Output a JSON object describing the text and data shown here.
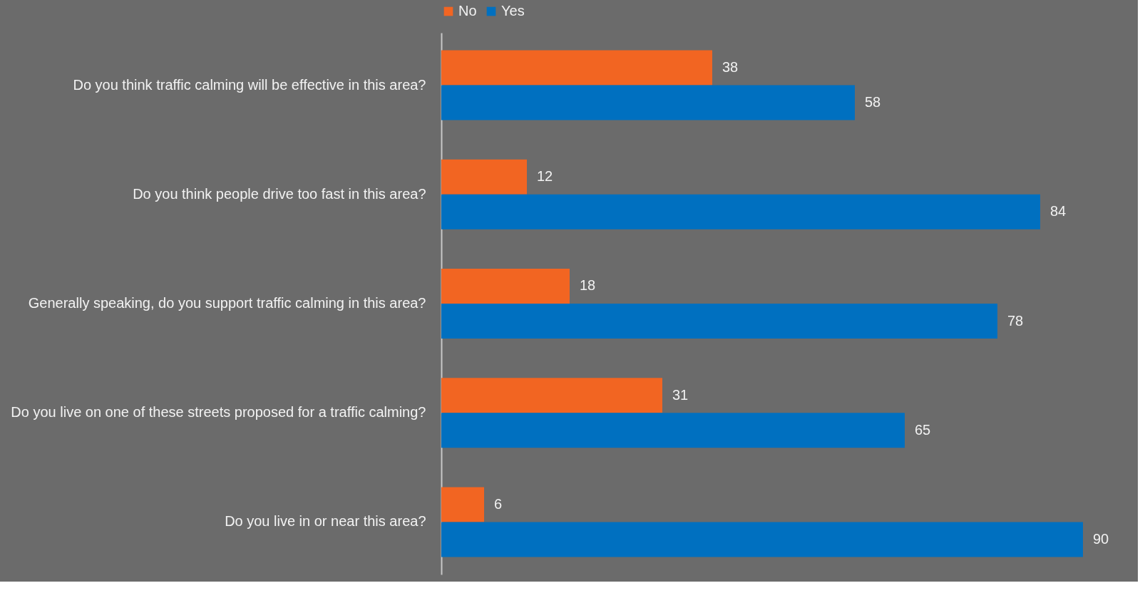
{
  "chart_data": {
    "type": "bar",
    "orientation": "horizontal",
    "categories": [
      "Do you think traffic calming will be effective in this area?",
      "Do you think people drive too fast in this area?",
      "Generally speaking, do you support traffic calming in this area?",
      "Do you live on one of these streets proposed for a traffic calming?",
      "Do you live in or near this area?"
    ],
    "series": [
      {
        "name": "No",
        "color": "#f26522",
        "values": [
          38,
          12,
          18,
          31,
          6
        ]
      },
      {
        "name": "Yes",
        "color": "#0070c0",
        "values": [
          58,
          84,
          78,
          65,
          90
        ]
      }
    ],
    "data_labels": true,
    "legend": "top"
  }
}
